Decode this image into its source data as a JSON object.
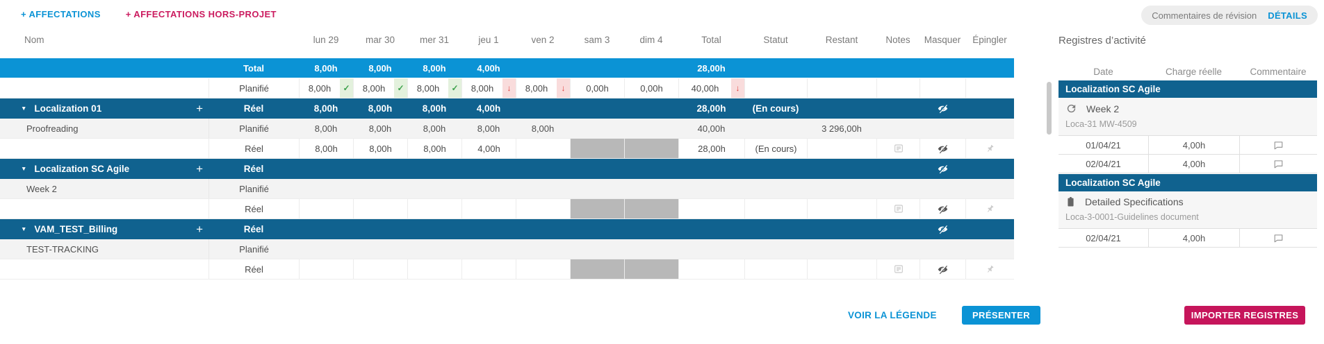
{
  "colors": {
    "accent_blue": "#0b93d5",
    "dark_blue": "#10628f",
    "crimson": "#c6155b",
    "ok_green": "#3da14b",
    "warn_red": "#e03c38",
    "weekend_gray": "#b8b8b8"
  },
  "toolbar": {
    "add_assignments": "+ AFFECTATIONS",
    "add_offproject": "+ AFFECTATIONS HORS-PROJET",
    "review_comments": "Commentaires de révision",
    "details": "DÉTAILS"
  },
  "grid": {
    "name_header": "Nom",
    "day_headers": [
      "lun 29",
      "mar 30",
      "mer 31",
      "jeu 1",
      "ven 2",
      "sam 3",
      "dim 4"
    ],
    "other_headers": [
      "Total",
      "Statut",
      "Restant",
      "Notes",
      "Masquer",
      "Épingler"
    ],
    "rows": [
      {
        "kind": "total",
        "name": "",
        "label": "Total",
        "days": [
          "8,00h",
          "8,00h",
          "8,00h",
          "4,00h",
          "",
          "",
          ""
        ],
        "total": "28,00h",
        "statut": "",
        "restant": ""
      },
      {
        "kind": "planned-summary",
        "name": "",
        "label": "Planifié",
        "days": [
          "8,00h",
          "8,00h",
          "8,00h",
          "8,00h",
          "8,00h",
          "0,00h",
          "0,00h"
        ],
        "flags": [
          "ok",
          "ok",
          "ok",
          "down",
          "down",
          "",
          ""
        ],
        "total": "40,00h",
        "total_flag": "down",
        "statut": "",
        "restant": ""
      },
      {
        "kind": "group",
        "name": "Localization 01",
        "label": "Réel",
        "days": [
          "8,00h",
          "8,00h",
          "8,00h",
          "4,00h",
          "",
          "",
          ""
        ],
        "total": "28,00h",
        "statut": "(En cours)",
        "restant": "",
        "icons": [
          "eye"
        ]
      },
      {
        "kind": "planned",
        "name": "Proofreading",
        "label": "Planifié",
        "days": [
          "8,00h",
          "8,00h",
          "8,00h",
          "8,00h",
          "8,00h",
          "",
          ""
        ],
        "total": "40,00h",
        "statut": "",
        "restant": "3 296,00h"
      },
      {
        "kind": "actual",
        "name": "",
        "label": "Réel",
        "days": [
          "8,00h",
          "8,00h",
          "8,00h",
          "4,00h",
          "",
          "",
          ""
        ],
        "weekend": [
          5,
          6
        ],
        "total": "28,00h",
        "statut": "(En cours)",
        "restant": "",
        "icons": [
          "note",
          "eye",
          "pin"
        ]
      },
      {
        "kind": "group",
        "name": "Localization SC Agile",
        "label": "Réel",
        "days": [
          "",
          "",
          "",
          "",
          "",
          "",
          ""
        ],
        "total": "",
        "statut": "",
        "restant": "",
        "icons": [
          "eye"
        ]
      },
      {
        "kind": "planned",
        "name": "Week 2",
        "label": "Planifié",
        "days": [
          "",
          "",
          "",
          "",
          "",
          "",
          ""
        ],
        "total": "",
        "statut": "",
        "restant": ""
      },
      {
        "kind": "actual",
        "name": "",
        "label": "Réel",
        "days": [
          "",
          "",
          "",
          "",
          "",
          "",
          ""
        ],
        "weekend": [
          5,
          6
        ],
        "total": "",
        "statut": "",
        "restant": "",
        "icons": [
          "note",
          "eye",
          "pin"
        ]
      },
      {
        "kind": "group",
        "name": "VAM_TEST_Billing",
        "label": "Réel",
        "days": [
          "",
          "",
          "",
          "",
          "",
          "",
          ""
        ],
        "total": "",
        "statut": "",
        "restant": "",
        "icons": [
          "eye"
        ]
      },
      {
        "kind": "planned",
        "name": "TEST-TRACKING",
        "label": "Planifié",
        "days": [
          "",
          "",
          "",
          "",
          "",
          "",
          ""
        ],
        "total": "",
        "statut": "",
        "restant": ""
      },
      {
        "kind": "actual",
        "name": "",
        "label": "Réel",
        "days": [
          "",
          "",
          "",
          "",
          "",
          "",
          ""
        ],
        "weekend": [
          5,
          6
        ],
        "total": "",
        "statut": "",
        "restant": "",
        "icons": [
          "note",
          "eye",
          "pin"
        ]
      }
    ]
  },
  "activity": {
    "title": "Registres d’activité",
    "headers": [
      "Date",
      "Charge réelle",
      "Commentaire"
    ],
    "blocks": [
      {
        "project": "Localization SC Agile",
        "icon": "sprint",
        "task": "Week 2",
        "reference": "Loca-31 MW-4509",
        "entries": [
          {
            "date": "01/04/21",
            "hours": "4,00h"
          },
          {
            "date": "02/04/21",
            "hours": "4,00h"
          }
        ]
      },
      {
        "project": "Localization SC Agile",
        "icon": "clipboard",
        "task": "Detailed Specifications",
        "reference": "Loca-3-0001-Guidelines document",
        "entries": [
          {
            "date": "02/04/21",
            "hours": "4,00h"
          }
        ]
      }
    ]
  },
  "footer": {
    "view_legend": "VOIR LA LÉGENDE",
    "present": "PRÉSENTER",
    "import_logs": "IMPORTER REGISTRES"
  }
}
